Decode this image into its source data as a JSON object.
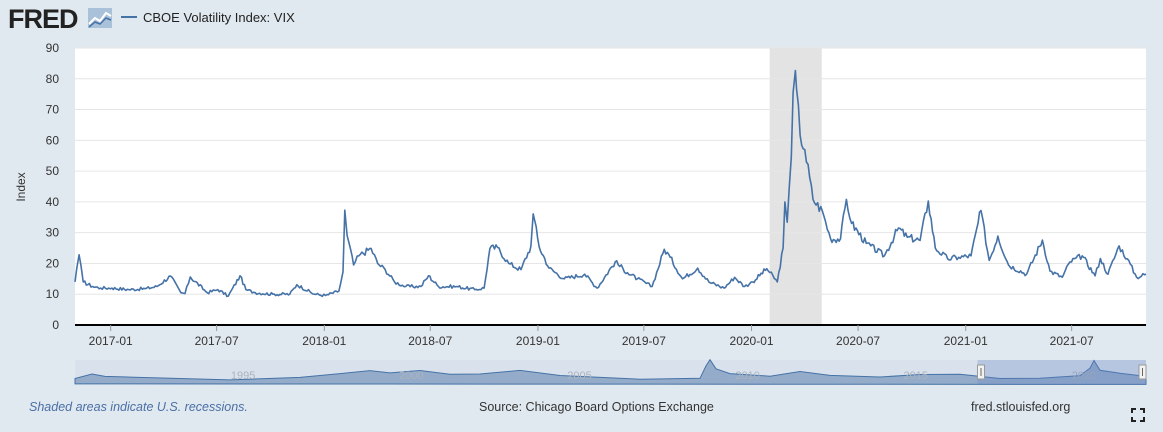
{
  "header": {
    "logo_text": "FRED",
    "series_legend": "CBOE Volatility Index: VIX"
  },
  "footer": {
    "recession_note": "Shaded areas indicate U.S. recessions.",
    "source": "Source: Chicago Board Options Exchange",
    "site": "fred.stlouisfed.org"
  },
  "colors": {
    "series": "#4572a7",
    "recession": "#e3e3e3",
    "background": "#e1e9f0",
    "plot_background": "#ffffff"
  },
  "icons": [
    "fred-graph-logo-icon",
    "fullscreen-icon"
  ],
  "chart_data": {
    "type": "line",
    "title": "",
    "ylabel": "Index",
    "xlabel": "",
    "ylim": [
      0,
      90
    ],
    "yticks": [
      0,
      10,
      20,
      30,
      40,
      50,
      60,
      70,
      80,
      90
    ],
    "xlim": [
      "2016-11-01",
      "2021-11-05"
    ],
    "xticks": [
      "2017-01",
      "2017-07",
      "2018-01",
      "2018-07",
      "2019-01",
      "2019-07",
      "2020-01",
      "2020-07",
      "2021-01",
      "2021-07"
    ],
    "grid": "horizontal",
    "recessions": [
      {
        "start": "2020-02-01",
        "end": "2020-04-30"
      }
    ],
    "series": [
      {
        "name": "CBOE Volatility Index: VIX",
        "x": [
          "2016-11-01",
          "2016-11-04",
          "2016-11-08",
          "2016-11-15",
          "2016-12-01",
          "2016-12-15",
          "2017-01-03",
          "2017-02-01",
          "2017-03-01",
          "2017-03-21",
          "2017-04-13",
          "2017-05-01",
          "2017-05-08",
          "2017-05-17",
          "2017-06-15",
          "2017-07-03",
          "2017-07-21",
          "2017-08-10",
          "2017-08-20",
          "2017-09-05",
          "2017-10-05",
          "2017-11-03",
          "2017-11-15",
          "2017-12-15",
          "2018-01-03",
          "2018-01-26",
          "2018-02-02",
          "2018-02-05",
          "2018-02-09",
          "2018-02-20",
          "2018-03-01",
          "2018-03-22",
          "2018-04-02",
          "2018-04-15",
          "2018-05-01",
          "2018-05-20",
          "2018-06-15",
          "2018-06-28",
          "2018-07-15",
          "2018-08-15",
          "2018-09-15",
          "2018-10-01",
          "2018-10-11",
          "2018-10-24",
          "2018-11-12",
          "2018-12-03",
          "2018-12-20",
          "2018-12-24",
          "2019-01-03",
          "2019-01-20",
          "2019-02-15",
          "2019-03-22",
          "2019-04-12",
          "2019-05-13",
          "2019-06-03",
          "2019-06-20",
          "2019-07-15",
          "2019-08-05",
          "2019-08-15",
          "2019-09-05",
          "2019-10-01",
          "2019-10-20",
          "2019-11-15",
          "2019-12-03",
          "2019-12-20",
          "2020-01-03",
          "2020-01-27",
          "2020-02-14",
          "2020-02-24",
          "2020-02-27",
          "2020-03-02",
          "2020-03-09",
          "2020-03-12",
          "2020-03-16",
          "2020-03-18",
          "2020-03-24",
          "2020-04-01",
          "2020-04-15",
          "2020-05-01",
          "2020-05-15",
          "2020-06-01",
          "2020-06-11",
          "2020-06-20",
          "2020-07-15",
          "2020-08-15",
          "2020-09-08",
          "2020-09-23",
          "2020-10-15",
          "2020-10-29",
          "2020-11-10",
          "2020-12-01",
          "2020-12-20",
          "2021-01-10",
          "2021-01-27",
          "2021-02-10",
          "2021-02-25",
          "2021-03-15",
          "2021-04-15",
          "2021-05-12",
          "2021-05-25",
          "2021-06-15",
          "2021-06-28",
          "2021-07-19",
          "2021-08-10",
          "2021-08-19",
          "2021-09-01",
          "2021-09-20",
          "2021-10-04",
          "2021-10-20",
          "2021-11-05"
        ],
        "values": [
          14.0,
          18.5,
          22.8,
          14.0,
          12.5,
          12.0,
          12.0,
          11.5,
          11.8,
          12.5,
          15.9,
          10.5,
          10.2,
          15.6,
          10.5,
          11.5,
          9.4,
          16.0,
          11.5,
          10.5,
          10.0,
          10.0,
          13.1,
          10.0,
          9.6,
          11.0,
          17.3,
          37.3,
          29.1,
          19.5,
          22.5,
          24.9,
          20.0,
          18.0,
          14.0,
          12.5,
          12.5,
          16.0,
          12.5,
          12.5,
          11.5,
          12.0,
          24.9,
          25.2,
          20.0,
          18.0,
          25.6,
          36.1,
          25.5,
          18.5,
          15.0,
          16.5,
          12.0,
          20.5,
          17.0,
          15.0,
          12.5,
          24.6,
          22.0,
          15.0,
          18.5,
          14.0,
          12.0,
          15.5,
          12.5,
          14.0,
          18.3,
          14.0,
          25.0,
          40.0,
          33.4,
          54.5,
          75.5,
          82.7,
          76.5,
          61.7,
          57.0,
          40.8,
          37.0,
          28.0,
          28.0,
          40.8,
          33.0,
          26.5,
          22.5,
          31.5,
          28.5,
          27.5,
          40.3,
          25.0,
          21.5,
          22.0,
          22.5,
          37.2,
          21.0,
          28.9,
          19.5,
          16.5,
          27.6,
          17.5,
          15.5,
          20.5,
          22.5,
          16.0,
          21.6,
          16.5,
          25.7,
          21.5,
          15.5,
          16.5
        ]
      }
    ],
    "navigator": {
      "xlim": [
        "1990-01-01",
        "2021-11-05"
      ],
      "xticks": [
        "1995",
        "2000",
        "2005",
        "2010",
        "2015",
        "2020"
      ]
    }
  }
}
